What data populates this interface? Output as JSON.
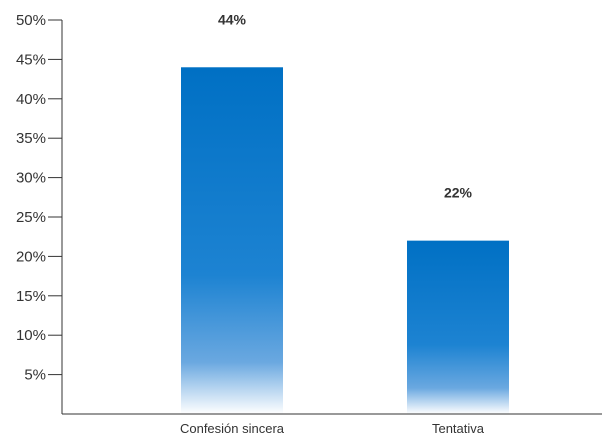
{
  "chart_data": {
    "type": "bar",
    "title": "",
    "xlabel": "",
    "ylabel": "",
    "categories": [
      "Confesión sincera",
      "Tentativa"
    ],
    "values": [
      44,
      22
    ],
    "data_labels": [
      "44%",
      "22%"
    ],
    "y_ticks": [
      5,
      10,
      15,
      20,
      25,
      30,
      35,
      40,
      45,
      50
    ],
    "y_tick_labels": [
      "5%",
      "10%",
      "15%",
      "20%",
      "25%",
      "30%",
      "35%",
      "40%",
      "45%",
      "50%"
    ],
    "ylim": [
      0,
      50
    ],
    "grid": false,
    "legend": "none",
    "colors": {
      "bar_top": "#0070c4",
      "bar_mid": "#2e8fd8",
      "bar_bottom": "#ffffff",
      "axis": "#333333",
      "text": "#333333"
    }
  }
}
